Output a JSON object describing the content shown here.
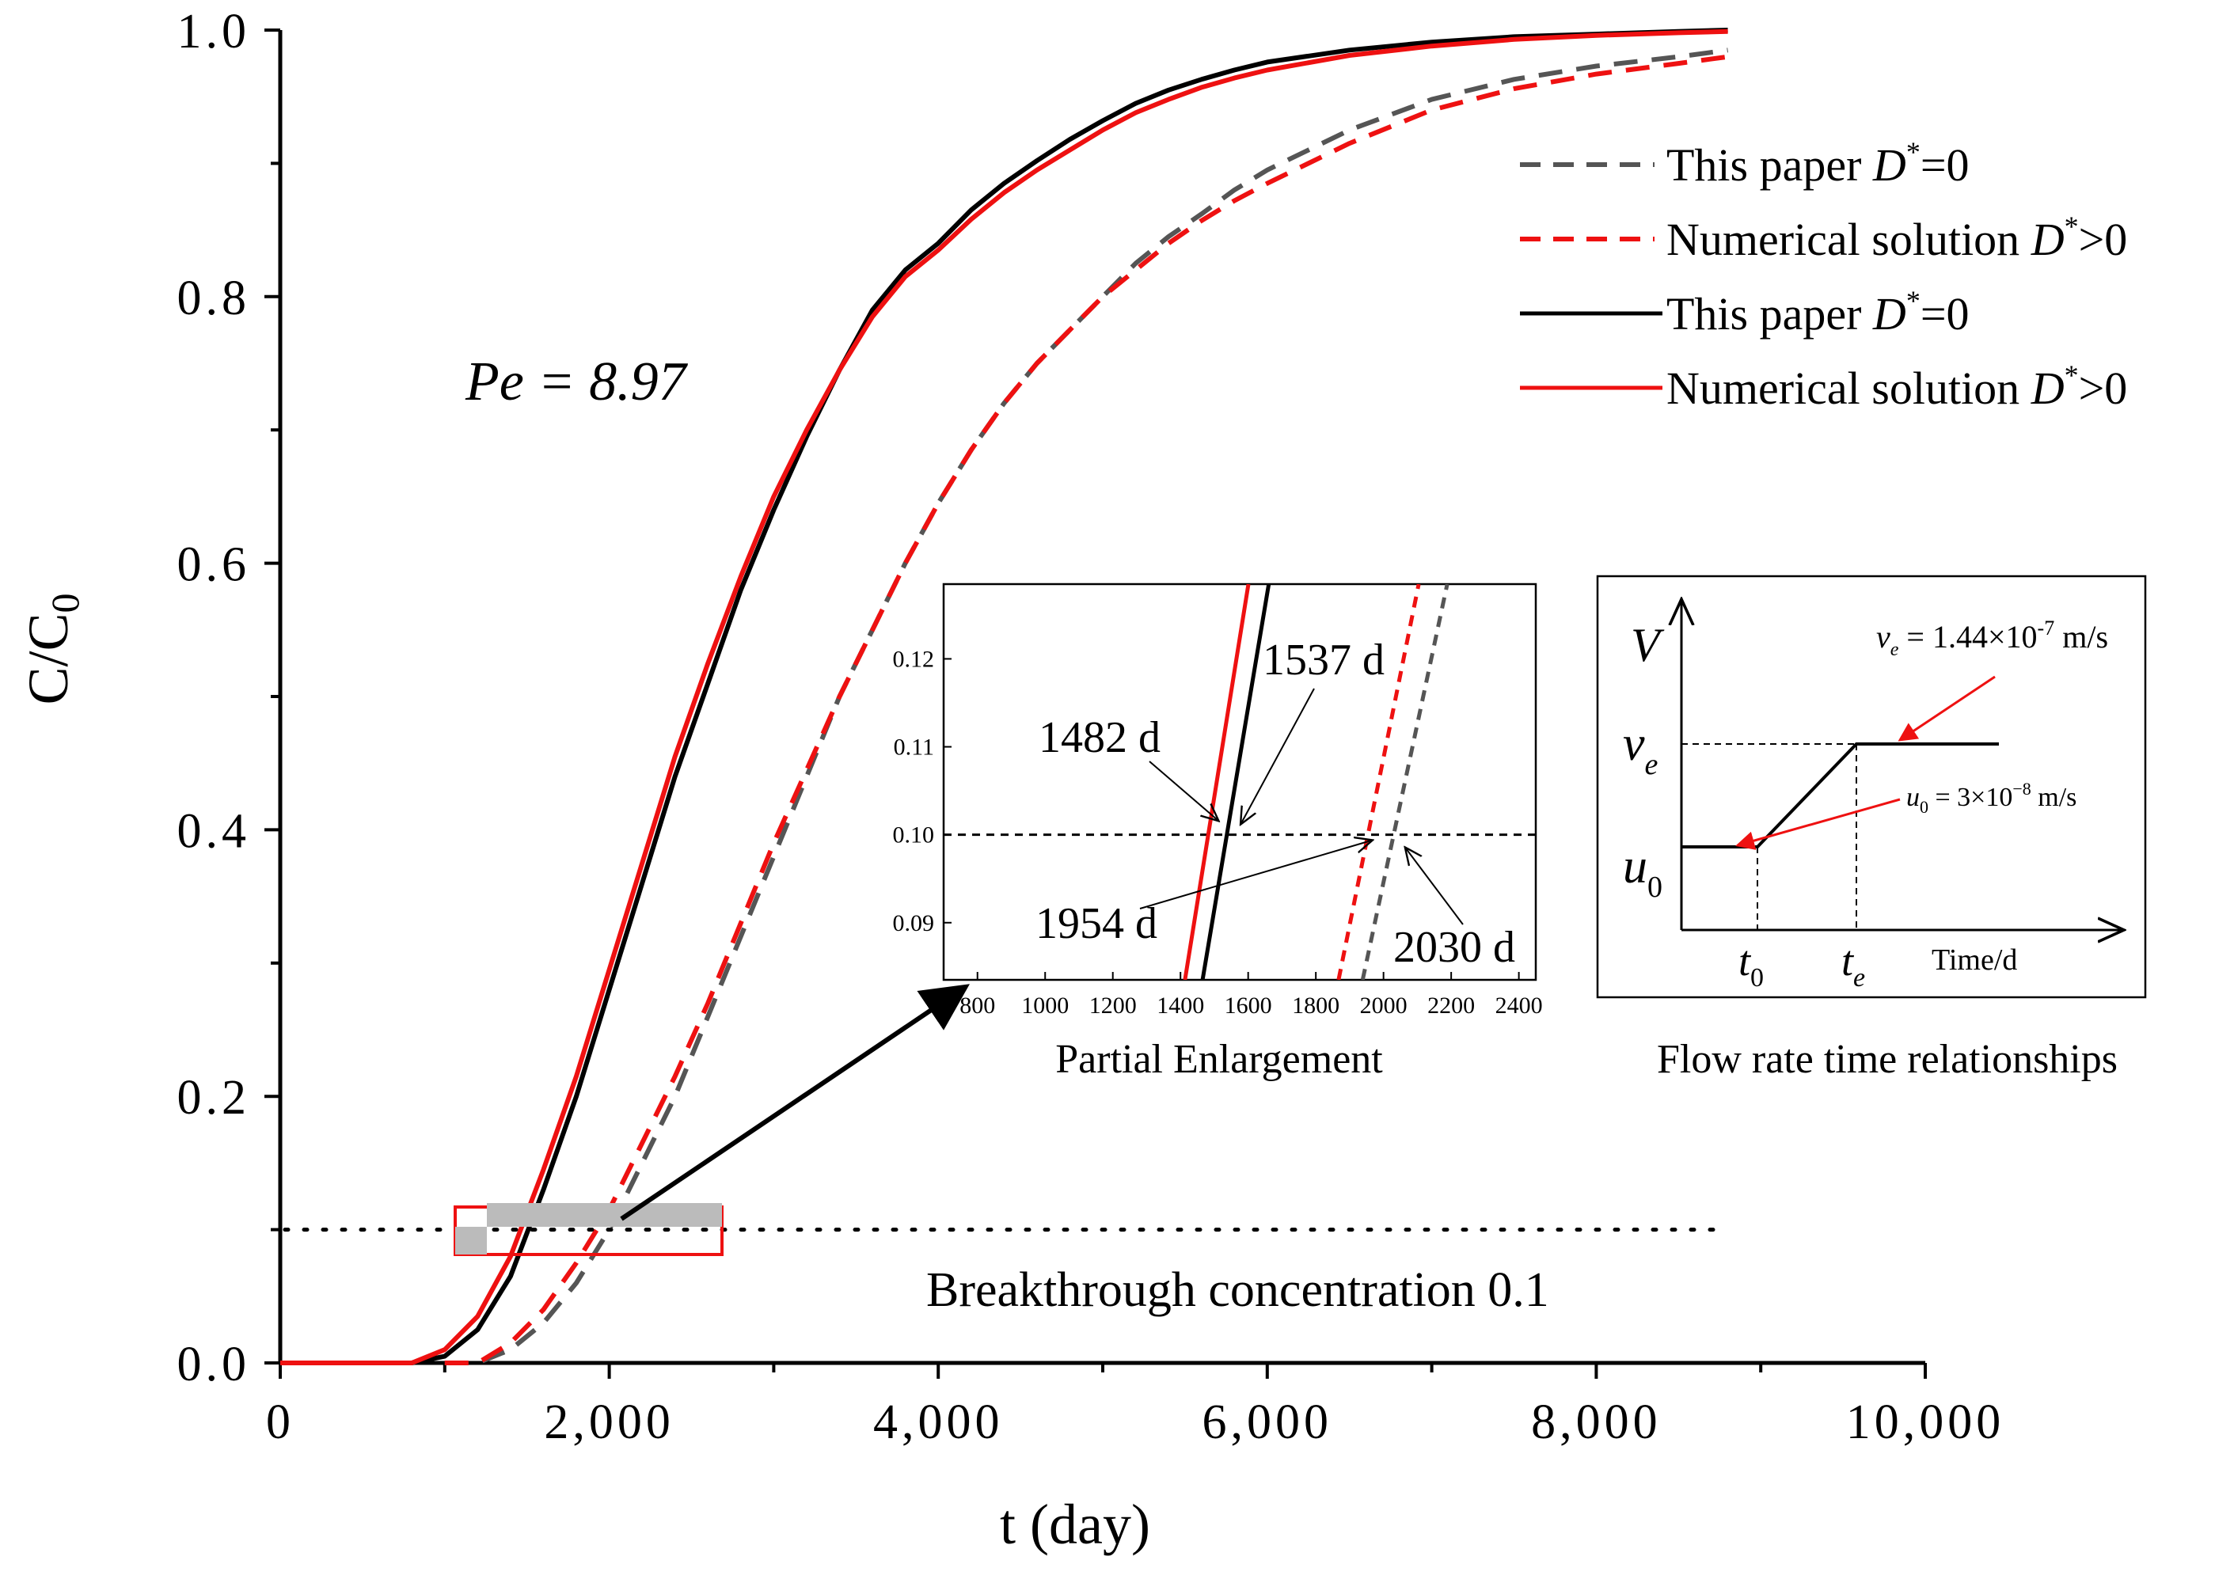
{
  "chart_data": {
    "type": "line",
    "title": "",
    "xlabel": "t (day)",
    "ylabel": "C/C0",
    "xlim": [
      0,
      10000
    ],
    "ylim": [
      0,
      1.0
    ],
    "x_ticks": [
      0,
      2000,
      4000,
      6000,
      8000,
      10000
    ],
    "x_tick_labels": [
      "0",
      "2,000",
      "4,000",
      "6,000",
      "8,000",
      "10,000"
    ],
    "y_ticks": [
      0,
      0.2,
      0.4,
      0.6,
      0.8,
      1.0
    ],
    "y_tick_labels": [
      "0.0",
      "0.2",
      "0.4",
      "0.6",
      "0.8",
      "1.0"
    ],
    "grid": false,
    "legend_position": "top-right",
    "series": [
      {
        "name": "This paper D*=0",
        "legend_name": "This paper ",
        "legend_suffix": "=0",
        "style": "dashed",
        "color": "#555555",
        "x": [
          1000,
          1200,
          1400,
          1600,
          1800,
          2000,
          2200,
          2400,
          2600,
          2800,
          3000,
          3200,
          3400,
          3600,
          3800,
          4000,
          4200,
          4400,
          4600,
          4800,
          5000,
          5200,
          5400,
          5600,
          5800,
          6000,
          6500,
          7000,
          7500,
          8000,
          8500,
          8800
        ],
        "y": [
          0.0,
          0.0,
          0.01,
          0.03,
          0.06,
          0.1,
          0.15,
          0.2,
          0.26,
          0.32,
          0.38,
          0.44,
          0.5,
          0.55,
          0.6,
          0.645,
          0.685,
          0.72,
          0.75,
          0.775,
          0.8,
          0.825,
          0.845,
          0.862,
          0.88,
          0.895,
          0.925,
          0.948,
          0.963,
          0.973,
          0.98,
          0.985
        ]
      },
      {
        "name": "Numerical solution D*>0",
        "legend_name": "Numerical solution ",
        "legend_suffix": ">0",
        "style": "dashed",
        "color": "#ee1111",
        "x": [
          1000,
          1200,
          1400,
          1600,
          1800,
          2000,
          2200,
          2400,
          2600,
          2800,
          3000,
          3200,
          3400,
          3600,
          3800,
          4000,
          4200,
          4400,
          4600,
          4800,
          5000,
          5200,
          5400,
          5600,
          5800,
          6000,
          6500,
          7000,
          7500,
          8000,
          8500,
          8800
        ],
        "y": [
          0.0,
          0.0,
          0.015,
          0.04,
          0.075,
          0.115,
          0.165,
          0.215,
          0.27,
          0.33,
          0.39,
          0.445,
          0.5,
          0.55,
          0.6,
          0.645,
          0.685,
          0.72,
          0.75,
          0.775,
          0.8,
          0.82,
          0.84,
          0.857,
          0.872,
          0.885,
          0.915,
          0.94,
          0.956,
          0.967,
          0.975,
          0.98
        ]
      },
      {
        "name": "This paper D*=0",
        "legend_name": "This paper ",
        "legend_suffix": "=0",
        "style": "solid",
        "color": "#000000",
        "x": [
          800,
          1000,
          1200,
          1400,
          1600,
          1800,
          2000,
          2200,
          2400,
          2600,
          2800,
          3000,
          3200,
          3400,
          3600,
          3800,
          4000,
          4200,
          4400,
          4600,
          4800,
          5000,
          5200,
          5400,
          5600,
          5800,
          6000,
          6500,
          7000,
          7500,
          8000,
          8500,
          8800
        ],
        "y": [
          0.0,
          0.005,
          0.025,
          0.065,
          0.13,
          0.2,
          0.28,
          0.36,
          0.44,
          0.51,
          0.58,
          0.64,
          0.695,
          0.745,
          0.79,
          0.82,
          0.84,
          0.865,
          0.885,
          0.902,
          0.918,
          0.932,
          0.945,
          0.955,
          0.963,
          0.97,
          0.976,
          0.985,
          0.991,
          0.995,
          0.997,
          0.999,
          1.0
        ]
      },
      {
        "name": "Numerical solution D*>0",
        "legend_name": "Numerical solution ",
        "legend_suffix": ">0",
        "style": "solid",
        "color": "#ee1111",
        "x": [
          800,
          1000,
          1200,
          1400,
          1600,
          1800,
          2000,
          2200,
          2400,
          2600,
          2800,
          3000,
          3200,
          3400,
          3600,
          3800,
          4000,
          4200,
          4400,
          4600,
          4800,
          5000,
          5200,
          5400,
          5600,
          5800,
          6000,
          6500,
          7000,
          7500,
          8000,
          8500,
          8800
        ],
        "y": [
          0.0,
          0.01,
          0.035,
          0.08,
          0.145,
          0.215,
          0.295,
          0.375,
          0.455,
          0.525,
          0.59,
          0.65,
          0.7,
          0.745,
          0.785,
          0.815,
          0.835,
          0.858,
          0.878,
          0.895,
          0.91,
          0.925,
          0.938,
          0.948,
          0.957,
          0.964,
          0.97,
          0.981,
          0.988,
          0.993,
          0.996,
          0.998,
          0.999
        ]
      }
    ],
    "annotations": {
      "peclet": "Pe = 8.97",
      "breakthrough_label": "Breakthrough concentration 0.1",
      "breakthrough_value": 0.1
    },
    "inset_enlargement": {
      "title": "Partial Enlargement",
      "xlim": [
        700,
        2450
      ],
      "ylim": [
        0.0835,
        0.1285
      ],
      "x_ticks": [
        800,
        1000,
        1200,
        1400,
        1600,
        1800,
        2000,
        2200,
        2400
      ],
      "x_tick_labels": [
        "800",
        "1000",
        "1200",
        "1400",
        "1600",
        "1800",
        "2000",
        "2200",
        "2400"
      ],
      "y_ticks": [
        0.09,
        0.1,
        0.11,
        0.12
      ],
      "y_tick_labels": [
        "0.09",
        "0.10",
        "0.11",
        "0.12"
      ],
      "breakthrough_times": [
        {
          "label": "1482 d",
          "value": 1482
        },
        {
          "label": "1537 d",
          "value": 1537
        },
        {
          "label": "1954 d",
          "value": 1954
        },
        {
          "label": "2030 d",
          "value": 2030
        }
      ]
    },
    "inset_flow": {
      "title": "Flow rate time relationships",
      "y_axis_label": "V",
      "x_axis_label": "Time/d",
      "ve_label": "v",
      "ve_sub": "e",
      "u0_label": "u",
      "u0_sub": "0",
      "t0_label": "t",
      "t0_sub": "0",
      "te_label": "t",
      "te_sub": "e",
      "ve_eq_value": " = 1.44×10",
      "ve_eq_exp": "-7",
      "ve_eq_unit": " m/s",
      "u0_eq_value": " = 3×10",
      "u0_eq_exp": "−8",
      "u0_eq_unit": " m/s"
    }
  }
}
